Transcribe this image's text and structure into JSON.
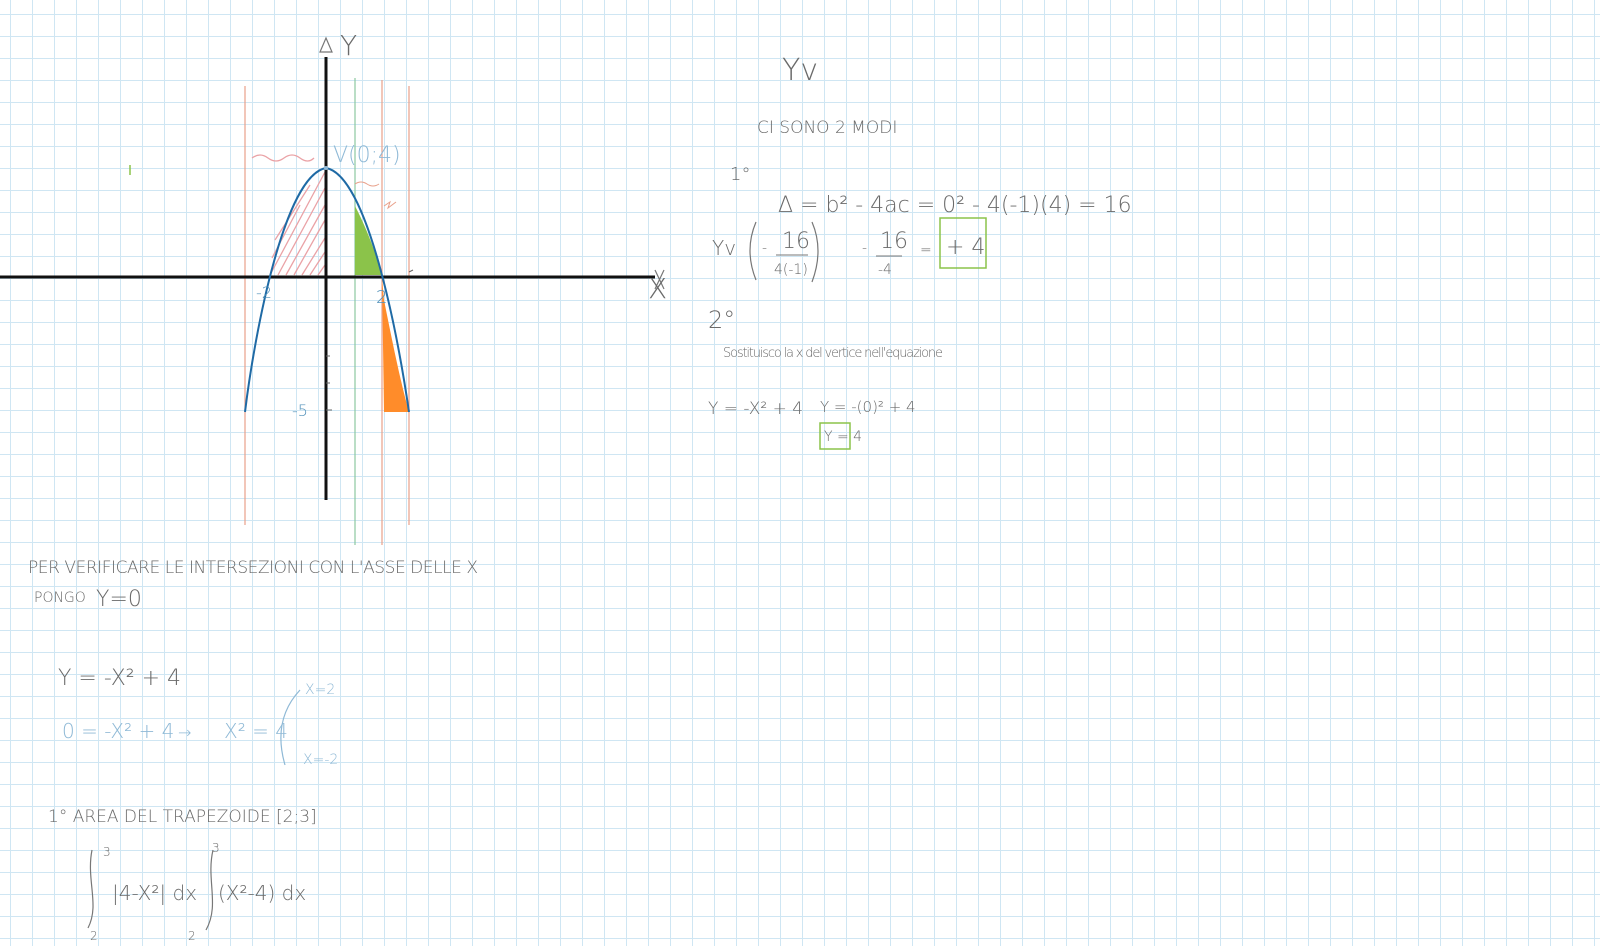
{
  "graph": {
    "y_axis_label": "Y",
    "x_axis_label": "X",
    "vertex_label": "V(0;4)",
    "tick_neg2": "-2",
    "tick_2": "2",
    "tick_neg5": "-5"
  },
  "notes_left": {
    "line1": "PER VERIFICARE LE INTERSEZIONI CON L'ASSE DELLE X",
    "line2_a": "PONGO",
    "line2_b": "Y=0",
    "eq1": "Y = -X² + 4",
    "eq2_a": "0 = -X² + 4",
    "eq2_arrow": "→",
    "eq2_b": "X² = 4",
    "sol1": "X=2",
    "sol2": "X=-2",
    "area_title": "1° AREA DEL TRAPEZOIDE [2;3]",
    "int1_upper": "3",
    "int1_lower": "2",
    "int1_body": "|4-X²| dx",
    "int2_upper": "3",
    "int2_lower": "2",
    "int2_body": "(X²-4) dx"
  },
  "notes_right": {
    "title": "Yv",
    "modes": "CI SONO 2 MODI",
    "first": "1°",
    "delta_eq": "Δ = b² - 4ac = 0² - 4(-1)(4) = 16",
    "yv_label": "Yv",
    "yv_num": "16",
    "yv_den": "4(-1)",
    "yv_minus": "-",
    "yv_frac_num": "16",
    "yv_frac_den": "-4",
    "yv_eq": "=",
    "yv_result": "+ 4",
    "second": "2°",
    "sostituisco": "Sostituisco la x del vertice nell'equazione",
    "eq_a": "Y = -X² + 4",
    "eq_b": "Y = -(0)² + 4",
    "eq_result": "Y = 4"
  }
}
